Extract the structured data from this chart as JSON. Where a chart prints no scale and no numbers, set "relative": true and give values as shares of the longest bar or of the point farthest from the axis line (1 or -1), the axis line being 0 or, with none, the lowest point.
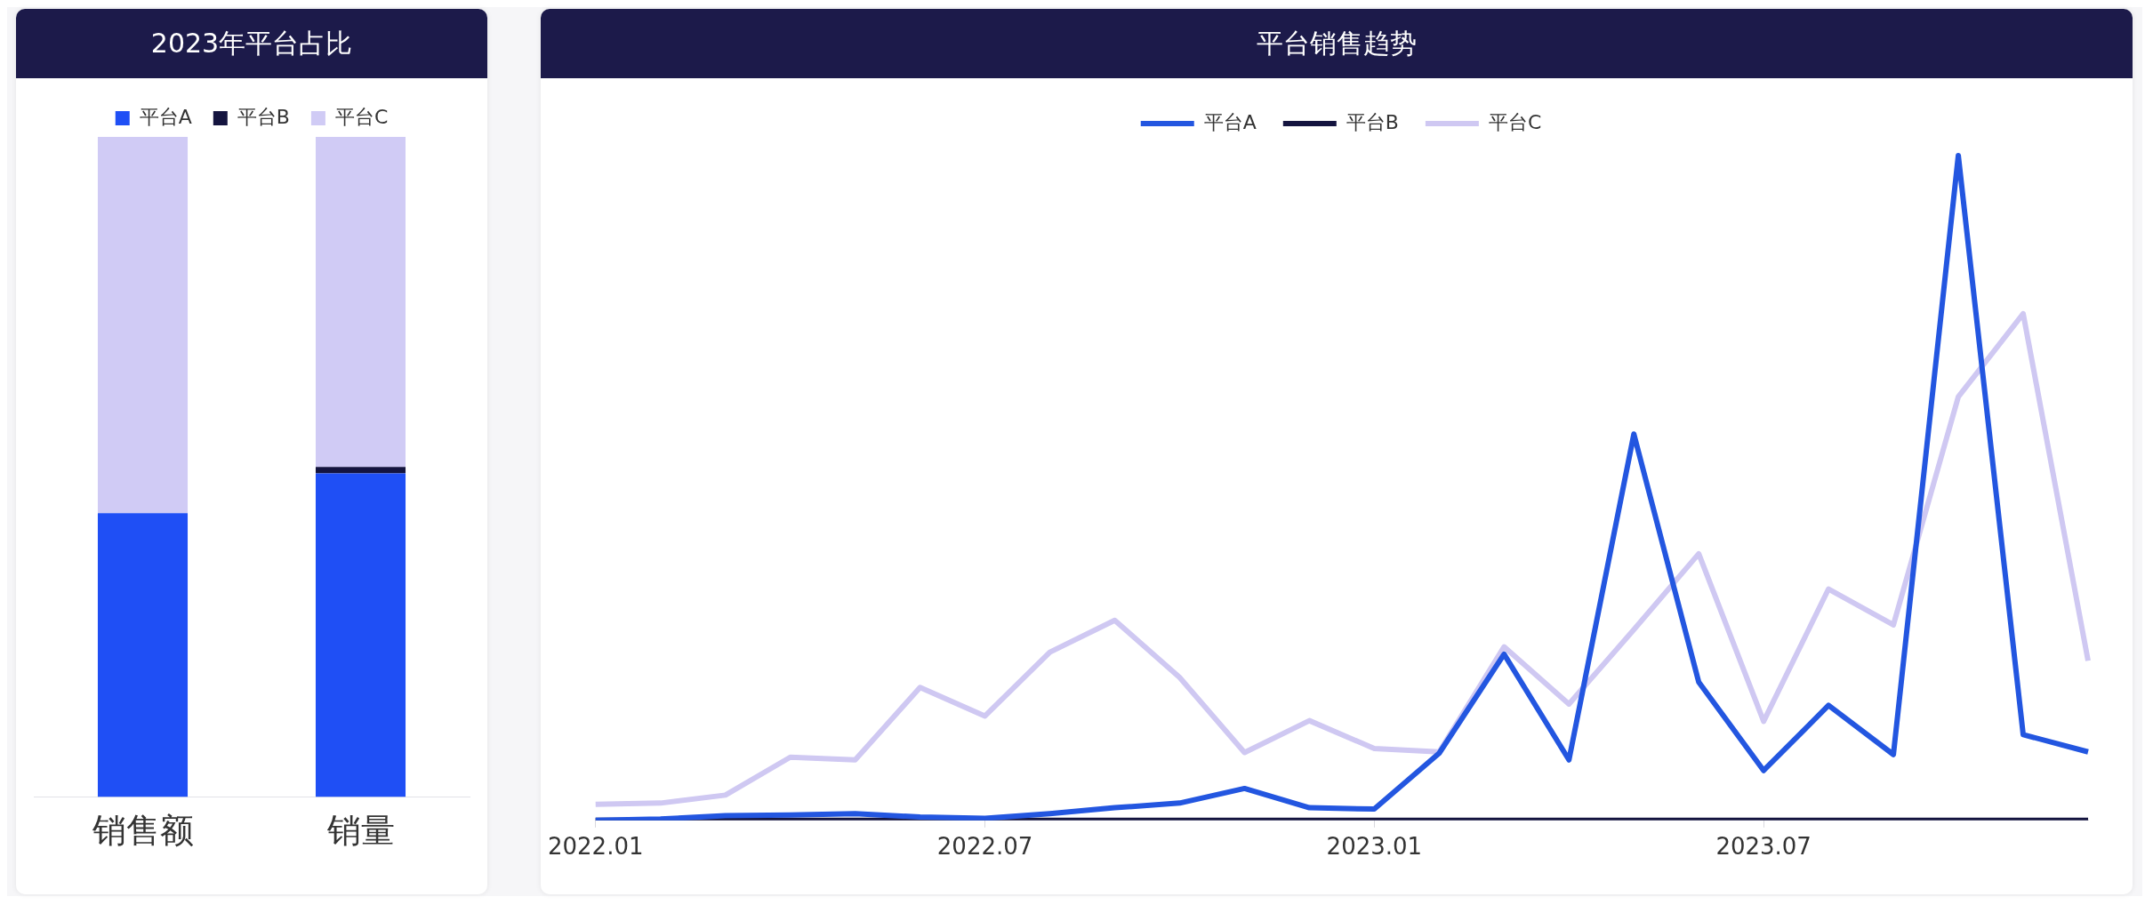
{
  "chart_data": [
    {
      "type": "bar",
      "title": "2023年平台占比",
      "categories": [
        "销售额",
        "销量"
      ],
      "stacked": true,
      "relative": true,
      "legend": "top",
      "series": [
        {
          "name": "平台A",
          "color": "#1f4ff5",
          "values": [
            0.43,
            0.49
          ]
        },
        {
          "name": "平台B",
          "color": "#14143f",
          "values": [
            0,
            0.01
          ]
        },
        {
          "name": "平台C",
          "color": "#d0cbf5",
          "values": [
            0.57,
            0.5
          ]
        }
      ]
    },
    {
      "type": "line",
      "title": "平台销售趋势",
      "relative": true,
      "legend": "top",
      "categories": [
        "2022.01",
        null,
        null,
        null,
        null,
        null,
        "2022.07",
        null,
        null,
        null,
        null,
        null,
        "2023.01",
        null,
        null,
        null,
        null,
        null,
        "2023.07",
        null,
        null,
        null,
        null,
        null
      ],
      "series": [
        {
          "name": "平台A",
          "color": "#2356e0",
          "values": [
            0,
            0.002,
            0.007,
            0.008,
            0.01,
            0.005,
            0.003,
            0.01,
            0.019,
            0.026,
            0.048,
            0.019,
            0.017,
            0.101,
            0.25,
            0.091,
            0.581,
            0.208,
            0.075,
            0.173,
            0.099,
            1,
            0.129,
            0.103
          ]
        },
        {
          "name": "平台B",
          "color": "#14143f",
          "values": [
            0,
            0,
            0,
            0,
            0,
            0,
            0,
            0,
            0,
            0,
            0,
            0,
            0,
            0,
            0,
            0,
            0,
            0,
            0,
            0,
            0,
            0,
            0,
            0
          ]
        },
        {
          "name": "平台C",
          "color": "#cfc8f2",
          "values": [
            0.024,
            0.026,
            0.038,
            0.095,
            0.091,
            0.2,
            0.157,
            0.253,
            0.301,
            0.215,
            0.102,
            0.15,
            0.108,
            0.103,
            0.261,
            0.175,
            0.287,
            0.401,
            0.149,
            0.348,
            0.294,
            0.637,
            0.762,
            0.24
          ]
        }
      ]
    }
  ]
}
